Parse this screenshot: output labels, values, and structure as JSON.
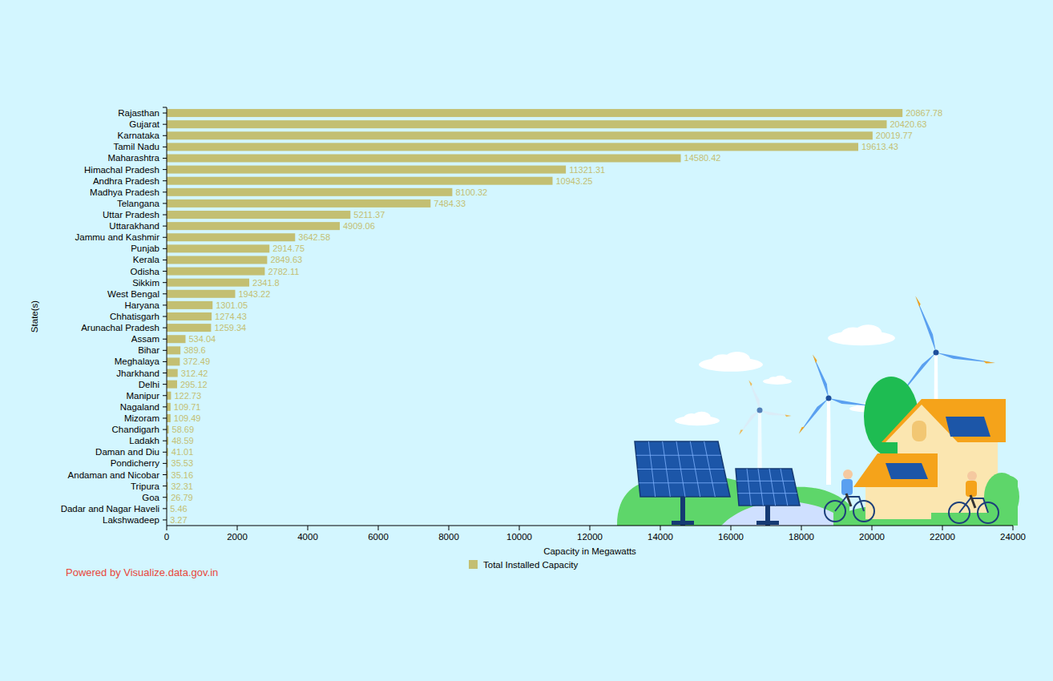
{
  "chart_data": {
    "type": "bar",
    "orientation": "horizontal",
    "xlabel": "Capacity in Megawatts",
    "ylabel": "State(s)",
    "annotations": [
      "Powered by Visualize.data.gov.in"
    ],
    "categories": [
      "Rajasthan",
      "Gujarat",
      "Karnataka",
      "Tamil Nadu",
      "Maharashtra",
      "Himachal Pradesh",
      "Andhra Pradesh",
      "Madhya Pradesh",
      "Telangana",
      "Uttar Pradesh",
      "Uttarakhand",
      "Jammu and Kashmir",
      "Punjab",
      "Kerala",
      "Odisha",
      "Sikkim",
      "West Bengal",
      "Haryana",
      "Chhatisgarh",
      "Arunachal Pradesh",
      "Assam",
      "Bihar",
      "Meghalaya",
      "Jharkhand",
      "Delhi",
      "Manipur",
      "Nagaland",
      "Mizoram",
      "Chandigarh",
      "Ladakh",
      "Daman and Diu",
      "Pondicherry",
      "Andaman and Nicobar",
      "Tripura",
      "Goa",
      "Dadar and Nagar Haveli",
      "Lakshwadeep"
    ],
    "series": [
      {
        "name": "Total Installed Capacity",
        "color": "#c3bf72",
        "values": [
          20867.78,
          20420.63,
          20019.77,
          19613.43,
          14580.42,
          11321.31,
          10943.25,
          8100.32,
          7484.33,
          5211.37,
          4909.06,
          3642.58,
          2914.75,
          2849.63,
          2782.11,
          2341.8,
          1943.22,
          1301.05,
          1274.43,
          1259.34,
          534.04,
          389.6,
          372.49,
          312.42,
          295.12,
          122.73,
          109.71,
          109.49,
          58.69,
          48.59,
          41.01,
          35.53,
          35.16,
          32.31,
          26.79,
          5.46,
          3.27
        ]
      }
    ],
    "xlim": [
      0,
      24000
    ],
    "xticks": [
      0,
      2000,
      4000,
      6000,
      8000,
      10000,
      12000,
      14000,
      16000,
      18000,
      20000,
      22000,
      24000
    ],
    "data_labels": true,
    "grid": false,
    "legend": "bottom"
  }
}
